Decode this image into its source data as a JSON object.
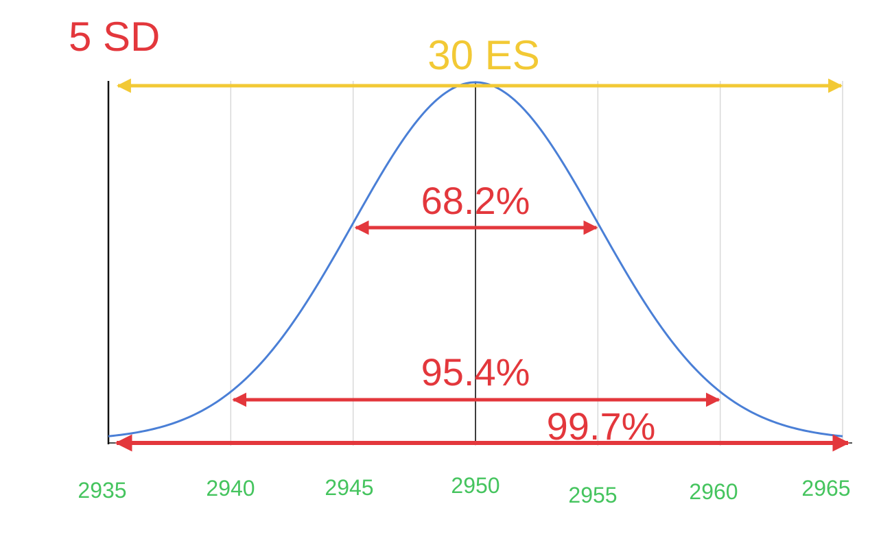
{
  "chart_data": {
    "type": "line",
    "distribution": "normal",
    "mean": 2950,
    "sd": 5,
    "x_ticks": [
      2935,
      2940,
      2945,
      2950,
      2955,
      2960,
      2965
    ],
    "x_tick_labels": [
      "2935",
      "2940",
      "2945",
      "2950",
      "2955",
      "2960",
      "2965"
    ],
    "xlim": [
      2935,
      2965
    ],
    "grid": true,
    "title_left": "5 SD",
    "title_center": "30 ES",
    "range_arrows": [
      {
        "label": "68.2%",
        "from": 2945,
        "to": 2955
      },
      {
        "label": "95.4%",
        "from": 2940,
        "to": 2960
      },
      {
        "label": "99.7%",
        "from": 2935,
        "to": 2965
      }
    ],
    "span_arrow": {
      "from": 2935,
      "to": 2965
    }
  },
  "colors": {
    "curve": "#4a7fd6",
    "red": "#e3373c",
    "yellow": "#f2c935",
    "green": "#45c45e",
    "grid": "#d6d6d6",
    "axis": "#111111"
  }
}
